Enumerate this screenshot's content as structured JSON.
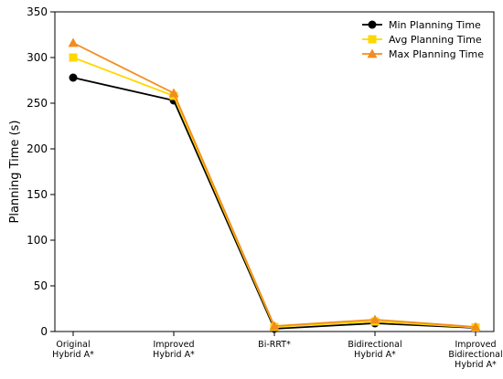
{
  "chart_data": {
    "type": "line",
    "categories": [
      [
        "Original",
        "Hybrid A*"
      ],
      [
        "Improved",
        "Hybrid A*"
      ],
      [
        "Bi-RRT*"
      ],
      [
        "Bidirectional",
        "Hybrid A*"
      ],
      [
        "Improved",
        "Bidirectional",
        "Hybrid A*"
      ]
    ],
    "series": [
      {
        "name": "Min Planning Time",
        "values": [
          278,
          253,
          3,
          9,
          4
        ],
        "color": "#000000",
        "marker": "circle"
      },
      {
        "name": "Avg Planning Time",
        "values": [
          300,
          258,
          5,
          11,
          4.5
        ],
        "color": "#FFD700",
        "marker": "square"
      },
      {
        "name": "Max Planning Time",
        "values": [
          316,
          261,
          6,
          13,
          5
        ],
        "color": "#F28C1E",
        "marker": "triangle"
      }
    ],
    "title": "",
    "xlabel": "",
    "ylabel": "Planning Time (s)",
    "ylim": [
      0,
      350
    ],
    "yticks": [
      0,
      50,
      100,
      150,
      200,
      250,
      300,
      350
    ],
    "grid": false,
    "legend": "top-right"
  }
}
